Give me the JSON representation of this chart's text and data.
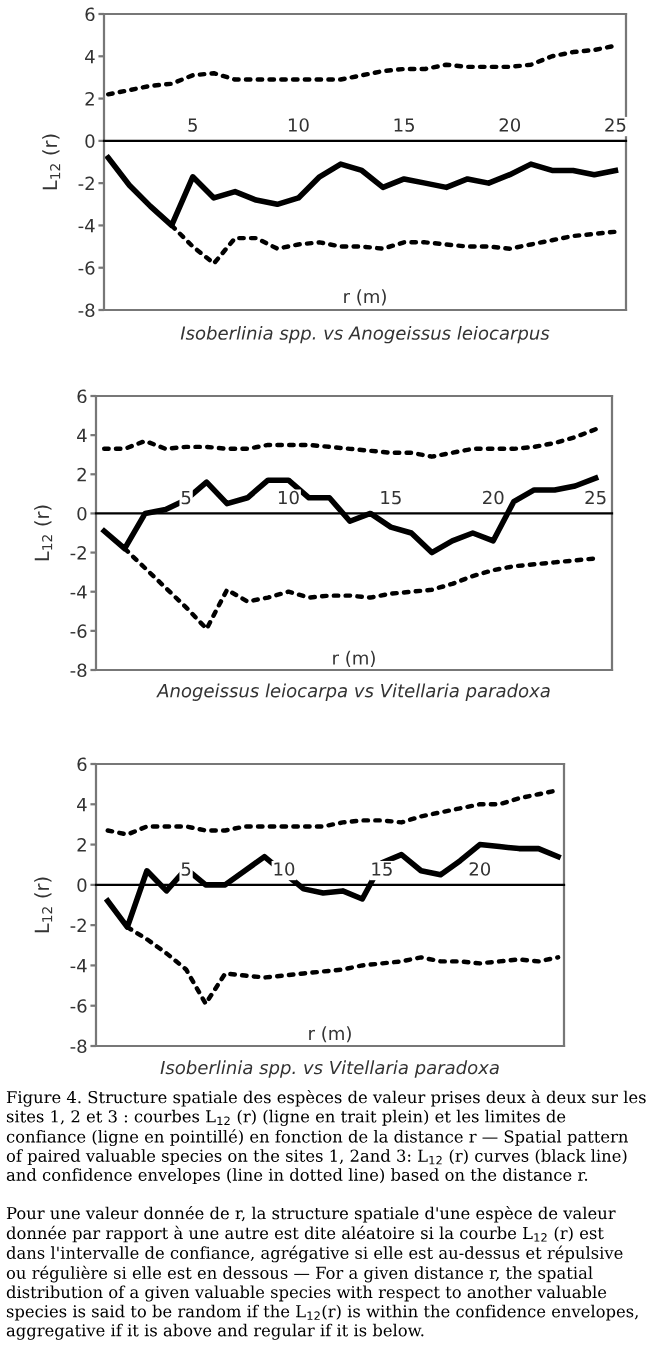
{
  "chart_data": [
    {
      "type": "line",
      "title": "Isoberlinia spp. vs Anogeissus leiocarpus",
      "xlabel": "r (m)",
      "ylabel": "L$_{12}$ (r)",
      "x": [
        1,
        2,
        3,
        4,
        5,
        6,
        7,
        8,
        9,
        10,
        11,
        12,
        13,
        14,
        15,
        16,
        17,
        18,
        19,
        20,
        21,
        22,
        23,
        24,
        25
      ],
      "xlim": [
        0.8,
        25.5
      ],
      "xticks": [
        5,
        10,
        15,
        20,
        25
      ],
      "ylim": [
        -8,
        6
      ],
      "yticks": [
        -8,
        -6,
        -4,
        -2,
        0,
        2,
        4,
        6
      ],
      "series": [
        {
          "color": "#000000",
          "line_style": "solid",
          "values": [
            -0.8,
            -2.1,
            -3.1,
            -4.0,
            -1.7,
            -2.7,
            -2.4,
            -2.8,
            -3.0,
            -2.7,
            -1.7,
            -1.1,
            -1.4,
            -2.2,
            -1.8,
            -2.0,
            -2.2,
            -1.8,
            -2.0,
            -1.6,
            -1.1,
            -1.4,
            -1.4,
            -1.6,
            -1.4
          ]
        },
        {
          "color": "#000000",
          "line_style": "dotted",
          "values": [
            2.2,
            2.4,
            2.6,
            2.7,
            3.1,
            3.2,
            2.9,
            2.9,
            2.9,
            2.9,
            2.9,
            2.9,
            3.1,
            3.3,
            3.4,
            3.4,
            3.6,
            3.5,
            3.5,
            3.5,
            3.6,
            4.0,
            4.2,
            4.3,
            4.5
          ]
        },
        {
          "color": "#000000",
          "line_style": "dotted",
          "values": [
            null,
            null,
            null,
            -4.0,
            -5.0,
            -5.8,
            -4.6,
            -4.6,
            -5.1,
            -4.9,
            -4.8,
            -5.0,
            -5.0,
            -5.1,
            -4.8,
            -4.8,
            -4.9,
            -5.0,
            -5.0,
            -5.1,
            -4.9,
            -4.7,
            -4.5,
            -4.4,
            -4.3
          ]
        }
      ]
    },
    {
      "type": "line",
      "title": "Anogeissus leiocarpa vs Vitellaria paradoxa",
      "xlabel": "r (m)",
      "ylabel": "L$_{12}$ (r)",
      "x": [
        1,
        2,
        3,
        4,
        5,
        6,
        7,
        8,
        9,
        10,
        11,
        12,
        13,
        14,
        15,
        16,
        17,
        18,
        19,
        20,
        21,
        22,
        23,
        24,
        25
      ],
      "xlim": [
        0.6,
        25.8
      ],
      "xticks": [
        5,
        10,
        15,
        20,
        25
      ],
      "ylim": [
        -8,
        6
      ],
      "yticks": [
        -8,
        -6,
        -4,
        -2,
        0,
        2,
        4,
        6
      ],
      "series": [
        {
          "color": "#000000",
          "line_style": "solid",
          "values": [
            -0.9,
            -1.8,
            0,
            0.2,
            0.7,
            1.6,
            0.5,
            0.8,
            1.7,
            1.7,
            0.8,
            0.8,
            -0.4,
            0,
            -0.7,
            -1.0,
            -2.0,
            -1.4,
            -1.0,
            -1.4,
            0.6,
            1.2,
            1.2,
            1.4,
            1.8
          ]
        },
        {
          "color": "#000000",
          "line_style": "dotted",
          "values": [
            3.3,
            3.3,
            3.7,
            3.3,
            3.4,
            3.4,
            3.3,
            3.3,
            3.5,
            3.5,
            3.5,
            3.4,
            3.3,
            3.2,
            3.1,
            3.1,
            2.9,
            3.1,
            3.3,
            3.3,
            3.3,
            3.4,
            3.6,
            3.9,
            4.3
          ]
        },
        {
          "color": "#000000",
          "line_style": "dotted",
          "values": [
            null,
            -1.8,
            -2.8,
            -3.8,
            -4.8,
            -5.9,
            -3.9,
            -4.5,
            -4.3,
            -4.0,
            -4.3,
            -4.2,
            -4.2,
            -4.3,
            -4.1,
            -4.0,
            -3.9,
            -3.6,
            -3.2,
            -2.9,
            -2.7,
            -2.6,
            -2.5,
            -2.4,
            -2.3
          ]
        }
      ]
    },
    {
      "type": "line",
      "title": "Isoberlinia spp. vs Vitellaria paradoxa",
      "xlabel": "r (m)",
      "ylabel": "L$_{12}$ (r)",
      "x": [
        1,
        2,
        3,
        4,
        5,
        6,
        7,
        8,
        9,
        10,
        11,
        12,
        13,
        14,
        15,
        16,
        17,
        18,
        19,
        20,
        21,
        22,
        23,
        24
      ],
      "xlim": [
        0.4,
        24.3
      ],
      "xticks": [
        5,
        10,
        15,
        20
      ],
      "ylim": [
        -8,
        6
      ],
      "yticks": [
        -8,
        -6,
        -4,
        -2,
        0,
        2,
        4,
        6
      ],
      "series": [
        {
          "color": "#000000",
          "line_style": "solid",
          "values": [
            -0.8,
            -2.1,
            0.7,
            -0.3,
            0.8,
            0,
            0,
            0.7,
            1.4,
            0.6,
            -0.2,
            -0.4,
            -0.3,
            -0.7,
            1.1,
            1.5,
            0.7,
            0.5,
            1.2,
            2.0,
            1.9,
            1.8,
            1.8,
            1.4
          ]
        },
        {
          "color": "#000000",
          "line_style": "dotted",
          "values": [
            2.7,
            2.5,
            2.9,
            2.9,
            2.9,
            2.7,
            2.7,
            2.9,
            2.9,
            2.9,
            2.9,
            2.9,
            3.1,
            3.2,
            3.2,
            3.1,
            3.4,
            3.6,
            3.8,
            4.0,
            4.0,
            4.3,
            4.5,
            4.7
          ]
        },
        {
          "color": "#000000",
          "line_style": "dotted",
          "values": [
            null,
            -2.1,
            -2.7,
            -3.4,
            -4.2,
            -5.9,
            -4.4,
            -4.5,
            -4.6,
            -4.5,
            -4.4,
            -4.3,
            -4.2,
            -4.0,
            -3.9,
            -3.8,
            -3.6,
            -3.8,
            -3.8,
            -3.9,
            -3.8,
            -3.7,
            -3.8,
            -3.6
          ]
        }
      ],
      "annotations": [
        "Figure 4. Structure spatiale des espèces de valeur prises deux à deux sur les sites 1, 2 et 3 : courbes L$_{12}$ (r) (ligne en trait plein) et les limites de confiance (ligne en pointillé) en fonction de la distance r — Spatial pattern of paired valuable species on the sites 1, 2and 3: L$_{12}$ (r) curves (black line) and confidence envelopes (line in dotted line) based on the distance r.",
        "Pour une valeur donnée de r, la structure spatiale d'une espèce de valeur donnée par rapport à une autre est dite aléatoire si la courbe L$_{12}$ (r) est dans l'intervalle de confiance, agrégative si elle est au-dessus et répulsive ou régulière si elle est en dessous — For a given distance r, the spatial distribution of a given valuable species with respect to another valuable species is said to be random if the L$_{12}$(r) is within the confidence envelopes, aggregative if it is above and regular if it is below."
      ]
    }
  ]
}
